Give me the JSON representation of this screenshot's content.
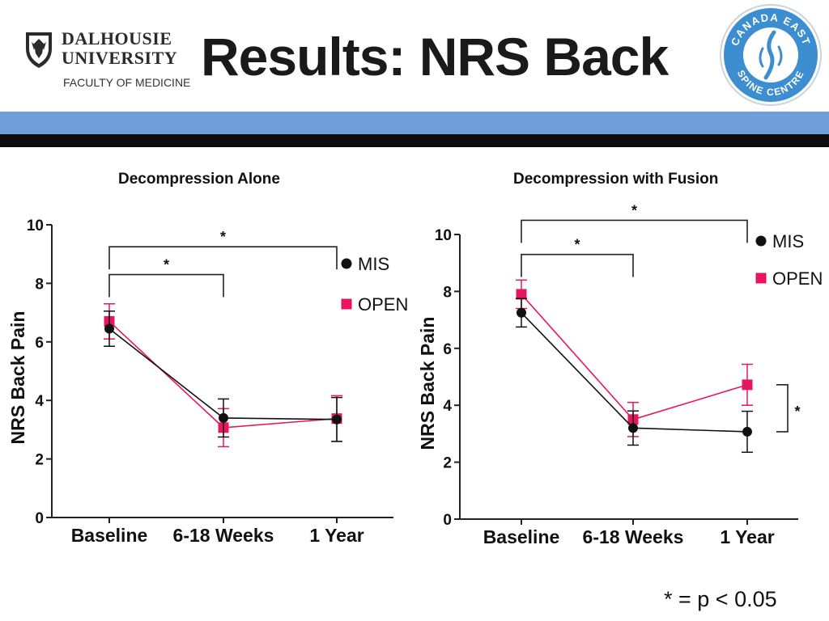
{
  "header": {
    "title": "Results: NRS Back",
    "institution_line1": "DALHOUSIE",
    "institution_line2": "UNIVERSITY",
    "faculty": "FACULTY OF MEDICINE",
    "partner_logo_top": "CANADA EAST",
    "partner_logo_bottom": "SPINE CENTRE"
  },
  "colors": {
    "mis": "#111111",
    "open": "#e8155f",
    "band": "#6f9fd8"
  },
  "icons": {
    "left_logo": "shield-crest-icon",
    "right_logo": "spine-logo-icon"
  },
  "footnote": "* = p < 0.05",
  "chart_data": [
    {
      "type": "line",
      "title": "Decompression Alone",
      "ylabel": "NRS Back Pain",
      "xlabel": "",
      "categories": [
        "Baseline",
        "6-18 Weeks",
        "1 Year"
      ],
      "yticks": [
        "0",
        "2",
        "4",
        "6",
        "8",
        "10"
      ],
      "ylim": [
        0,
        10
      ],
      "legend": "right",
      "series": [
        {
          "name": "MIS",
          "values": [
            6.45,
            3.4,
            3.35
          ],
          "err": [
            0.6,
            0.65,
            0.75
          ]
        },
        {
          "name": "OPEN",
          "values": [
            6.7,
            3.07,
            3.38
          ],
          "err": [
            0.6,
            0.65,
            0.78
          ]
        }
      ],
      "significance": [
        {
          "from": 0,
          "to": 1,
          "y": 8.3,
          "label": "*"
        },
        {
          "from": 0,
          "to": 2,
          "y": 9.25,
          "label": "*"
        }
      ]
    },
    {
      "type": "line",
      "title": "Decompression with Fusion",
      "ylabel": "NRS Back Pain",
      "xlabel": "",
      "categories": [
        "Baseline",
        "6-18 Weeks",
        "1 Year"
      ],
      "yticks": [
        "0",
        "2",
        "4",
        "6",
        "8",
        "10"
      ],
      "ylim": [
        0,
        10
      ],
      "legend": "top-right",
      "series": [
        {
          "name": "MIS",
          "values": [
            7.25,
            3.2,
            3.07
          ],
          "err": [
            0.5,
            0.6,
            0.72
          ]
        },
        {
          "name": "OPEN",
          "values": [
            7.9,
            3.5,
            4.72
          ],
          "err": [
            0.5,
            0.6,
            0.72
          ]
        }
      ],
      "significance": [
        {
          "from": 0,
          "to": 1,
          "y": 9.3,
          "label": "*"
        },
        {
          "from": 0,
          "to": 2,
          "y": 10.5,
          "label": "*"
        }
      ],
      "endpoint_significance": {
        "category": 2,
        "between": [
          3.07,
          4.72
        ],
        "label": "*"
      }
    }
  ]
}
